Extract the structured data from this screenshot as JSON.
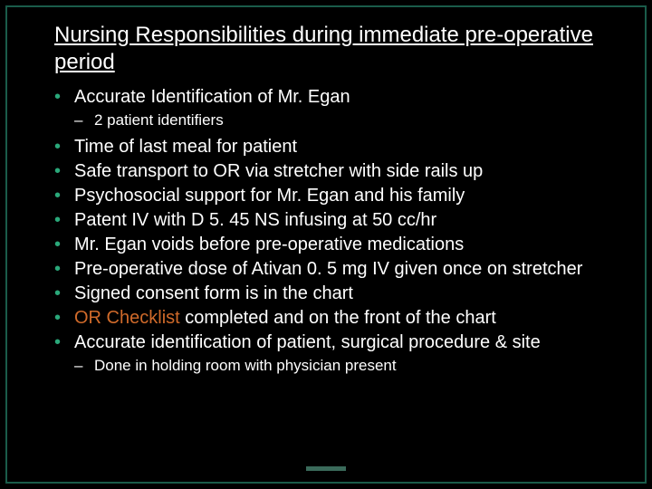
{
  "colors": {
    "background": "#000000",
    "text": "#ffffff",
    "border": "#1a5c4a",
    "bullet": "#2aa87a",
    "highlight": "#d06a2a",
    "accent_bar": "#3a6a5a"
  },
  "typography": {
    "title_fontsize": 24,
    "bullet_fontsize": 20,
    "sub_fontsize": 17
  },
  "title": "Nursing Responsibilities during immediate pre-operative period",
  "items": [
    {
      "text": "Accurate Identification of Mr. Egan",
      "sub": [
        " 2 patient identifiers"
      ]
    },
    {
      "text": "Time of last meal for patient"
    },
    {
      "text": "Safe transport to OR via stretcher with side rails up"
    },
    {
      "text": "Psychosocial support for Mr. Egan and his family"
    },
    {
      "text": "Patent IV with D 5. 45 NS infusing at 50 cc/hr"
    },
    {
      "text": "Mr. Egan voids before pre-operative medications"
    },
    {
      "text": "Pre-operative dose of Ativan 0. 5 mg IV given once on stretcher"
    },
    {
      "text": "Signed consent form is in the chart"
    },
    {
      "highlight": "OR Checklist",
      "text_after": " completed and on the front of the chart"
    },
    {
      "text": "Accurate identification of patient, surgical procedure & site",
      "sub": [
        " Done in holding room with physician present"
      ]
    }
  ]
}
